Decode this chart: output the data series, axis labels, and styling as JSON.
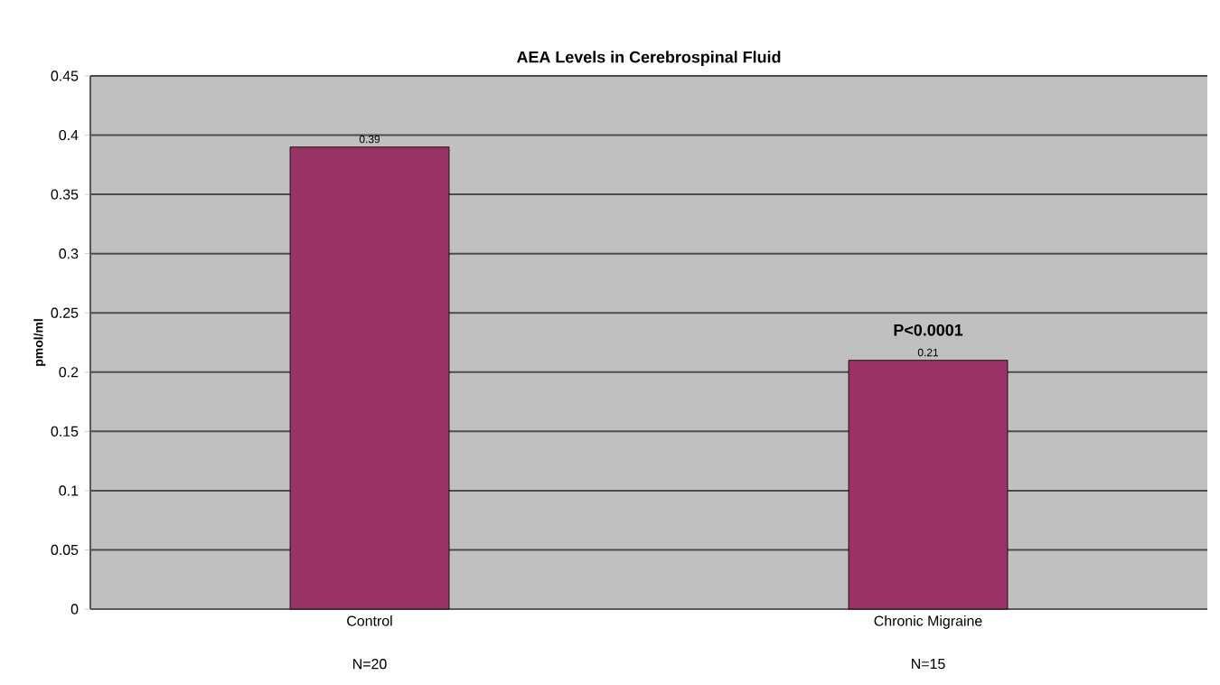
{
  "chart_data": {
    "type": "bar",
    "title": "AEA Levels in Cerebrospinal Fluid",
    "ylabel": "pmol/ml",
    "categories": [
      "Control",
      "Chronic Migraine"
    ],
    "values": [
      0.39,
      0.21
    ],
    "color": "#993366",
    "data_labels": true,
    "ylim": [
      0,
      0.45
    ],
    "yticks": [
      0,
      0.05,
      0.1,
      0.15,
      0.2,
      0.25,
      0.3,
      0.35,
      0.4,
      0.45
    ],
    "grid": "y",
    "annotations": [
      {
        "text": "P<0.0001",
        "x": "Chronic Migraine",
        "y": 0.21
      },
      "N=20",
      "N=15"
    ]
  }
}
